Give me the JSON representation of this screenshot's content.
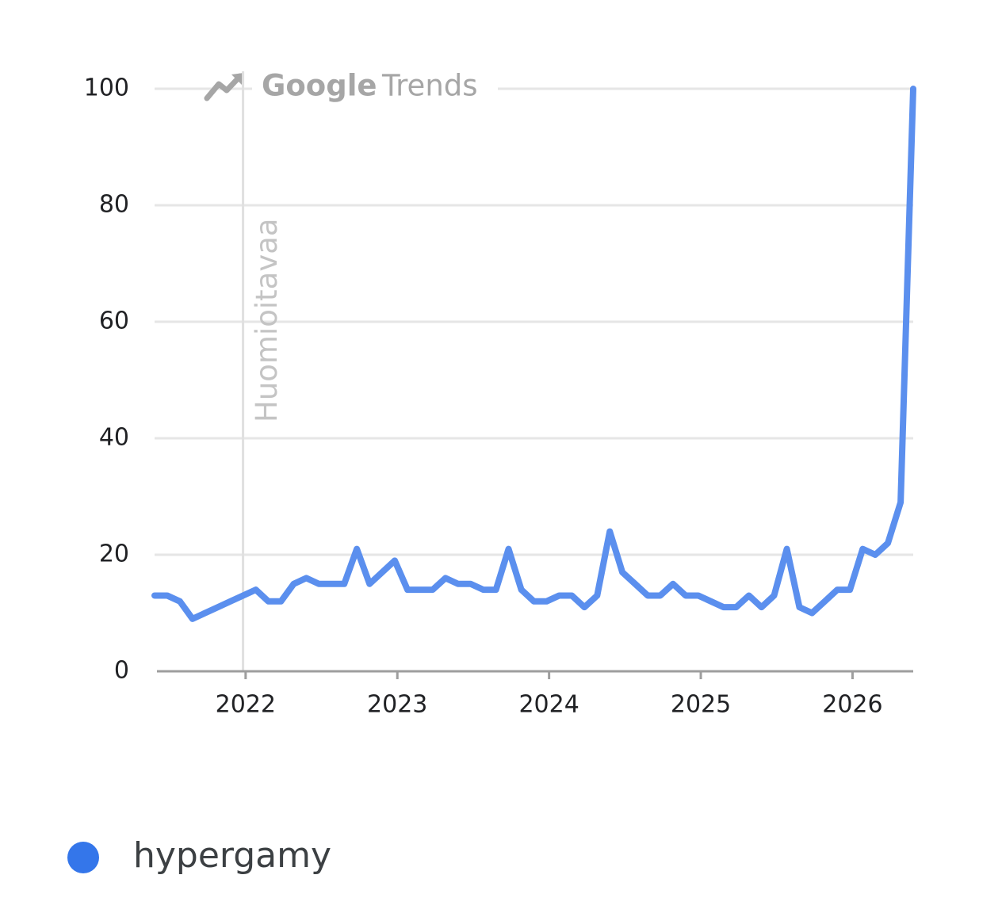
{
  "chart_data": {
    "type": "line",
    "watermark": [
      "Google",
      "Trends"
    ],
    "annotation": {
      "text": "Huomioitavaa",
      "x": 2021.983
    },
    "x": [
      2021.4,
      2021.483,
      2021.567,
      2021.65,
      2021.733,
      2021.817,
      2021.9,
      2021.983,
      2022.067,
      2022.15,
      2022.233,
      2022.317,
      2022.4,
      2022.483,
      2022.567,
      2022.65,
      2022.733,
      2022.817,
      2022.9,
      2022.983,
      2023.067,
      2023.15,
      2023.233,
      2023.317,
      2023.4,
      2023.483,
      2023.567,
      2023.65,
      2023.733,
      2023.817,
      2023.9,
      2023.983,
      2024.067,
      2024.15,
      2024.233,
      2024.317,
      2024.4,
      2024.483,
      2024.567,
      2024.65,
      2024.733,
      2024.817,
      2024.9,
      2024.983,
      2025.067,
      2025.15,
      2025.233,
      2025.317,
      2025.4,
      2025.483,
      2025.567,
      2025.65,
      2025.733,
      2025.817,
      2025.9,
      2025.983,
      2026.067,
      2026.15,
      2026.233,
      2026.317,
      2026.4
    ],
    "series": [
      {
        "name": "hypergamy",
        "color": "#5b8fee",
        "values": [
          13,
          13,
          12,
          9,
          10,
          11,
          12,
          13,
          14,
          12,
          12,
          15,
          16,
          15,
          15,
          15,
          21,
          15,
          17,
          19,
          14,
          14,
          14,
          16,
          15,
          15,
          14,
          14,
          21,
          14,
          12,
          12,
          13,
          13,
          11,
          13,
          24,
          17,
          15,
          13,
          13,
          15,
          13,
          13,
          12,
          11,
          11,
          13,
          11,
          13,
          21,
          11,
          10,
          12,
          14,
          14,
          21,
          20,
          22,
          29,
          100
        ]
      }
    ],
    "legend_marker_color": "#3476ea",
    "xlim": [
      2021.4,
      2026.4
    ],
    "xticks": [
      2022,
      2023,
      2024,
      2025,
      2026
    ],
    "ylim": [
      0,
      100
    ],
    "yticks": [
      0,
      20,
      40,
      60,
      80,
      100
    ],
    "grid": true
  }
}
